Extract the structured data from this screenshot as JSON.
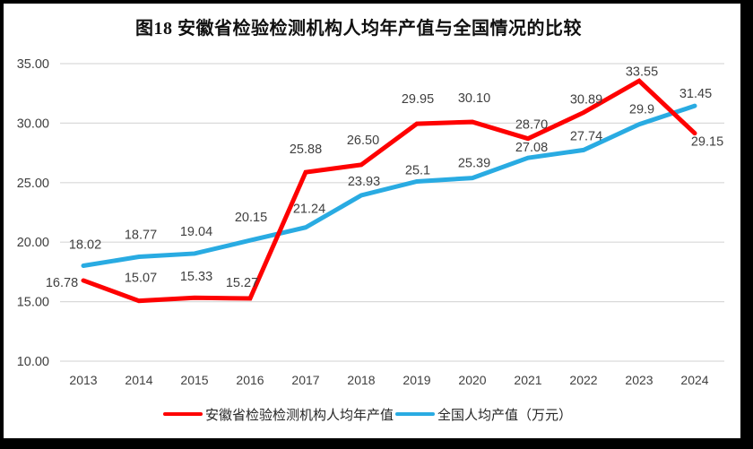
{
  "page": {
    "background_color": "#ffffff",
    "frame_color": "#000000"
  },
  "title": {
    "text": "图18 安徽省检验检测机构人均年产值与全国情况的比较"
  },
  "legend": {
    "items": [
      {
        "label": "安徽省检验检测机构人均年产值",
        "color": "#FE0101",
        "swatch": "line"
      },
      {
        "label": "全国人均产值（万元）",
        "color": "#29ABE2",
        "swatch": "line"
      }
    ]
  },
  "chart_data": {
    "type": "line",
    "title": "图18 安徽省检验检测机构人均年产值与全国情况的比较",
    "categories": [
      "2013",
      "2014",
      "2015",
      "2016",
      "2017",
      "2018",
      "2019",
      "2020",
      "2021",
      "2022",
      "2023",
      "2024"
    ],
    "series": [
      {
        "name": "安徽省检验检测机构人均年产值",
        "color": "#FE0101",
        "values": [
          16.78,
          15.07,
          15.33,
          15.27,
          25.88,
          26.5,
          29.95,
          30.1,
          28.7,
          30.89,
          33.55,
          29.15
        ],
        "point_labels": [
          "16.78",
          "15.07",
          "15.33",
          "15.27",
          "25.88",
          "26.50",
          "29.95",
          "30.10",
          "28.70",
          "30.89",
          "33.55",
          "29.15"
        ]
      },
      {
        "name": "全国人均产值（万元）",
        "color": "#29ABE2",
        "values": [
          18.02,
          18.77,
          19.04,
          20.15,
          21.24,
          23.93,
          25.1,
          25.39,
          27.08,
          27.74,
          29.9,
          31.45
        ],
        "point_labels": [
          "18.02",
          "18.77",
          "19.04",
          "20.15",
          "21.24",
          "23.93",
          "25.1",
          "25.39",
          "27.08",
          "27.74",
          "29.9",
          "31.45"
        ]
      }
    ],
    "xlabel": "",
    "ylabel": "",
    "ylim": [
      10,
      35
    ],
    "yticks": [
      10,
      15,
      20,
      25,
      30,
      35
    ],
    "ytick_labels": [
      "10.00",
      "15.00",
      "20.00",
      "25.00",
      "30.00",
      "35.00"
    ],
    "grid": true,
    "gridline_color": "#D9D9D9",
    "tick_label_color": "#404040",
    "data_label_color": "#404040",
    "legend_position": "bottom",
    "label_offsets": [
      [
        [
          -24,
          2
        ],
        [
          2,
          -26
        ],
        [
          2,
          -24
        ],
        [
          -9,
          -18
        ],
        [
          0,
          -26
        ],
        [
          2,
          -28
        ],
        [
          1,
          -28
        ],
        [
          2,
          -27
        ],
        [
          4,
          -16
        ],
        [
          3,
          -15
        ],
        [
          3,
          -11
        ],
        [
          14,
          9
        ]
      ],
      [
        [
          2,
          -24
        ],
        [
          2,
          -25
        ],
        [
          2,
          -25
        ],
        [
          1,
          -26
        ],
        [
          4,
          -21
        ],
        [
          3,
          -16
        ],
        [
          1,
          -13
        ],
        [
          2,
          -17
        ],
        [
          4,
          -12
        ],
        [
          3,
          -16
        ],
        [
          3,
          -17
        ],
        [
          1,
          -14
        ]
      ]
    ]
  }
}
